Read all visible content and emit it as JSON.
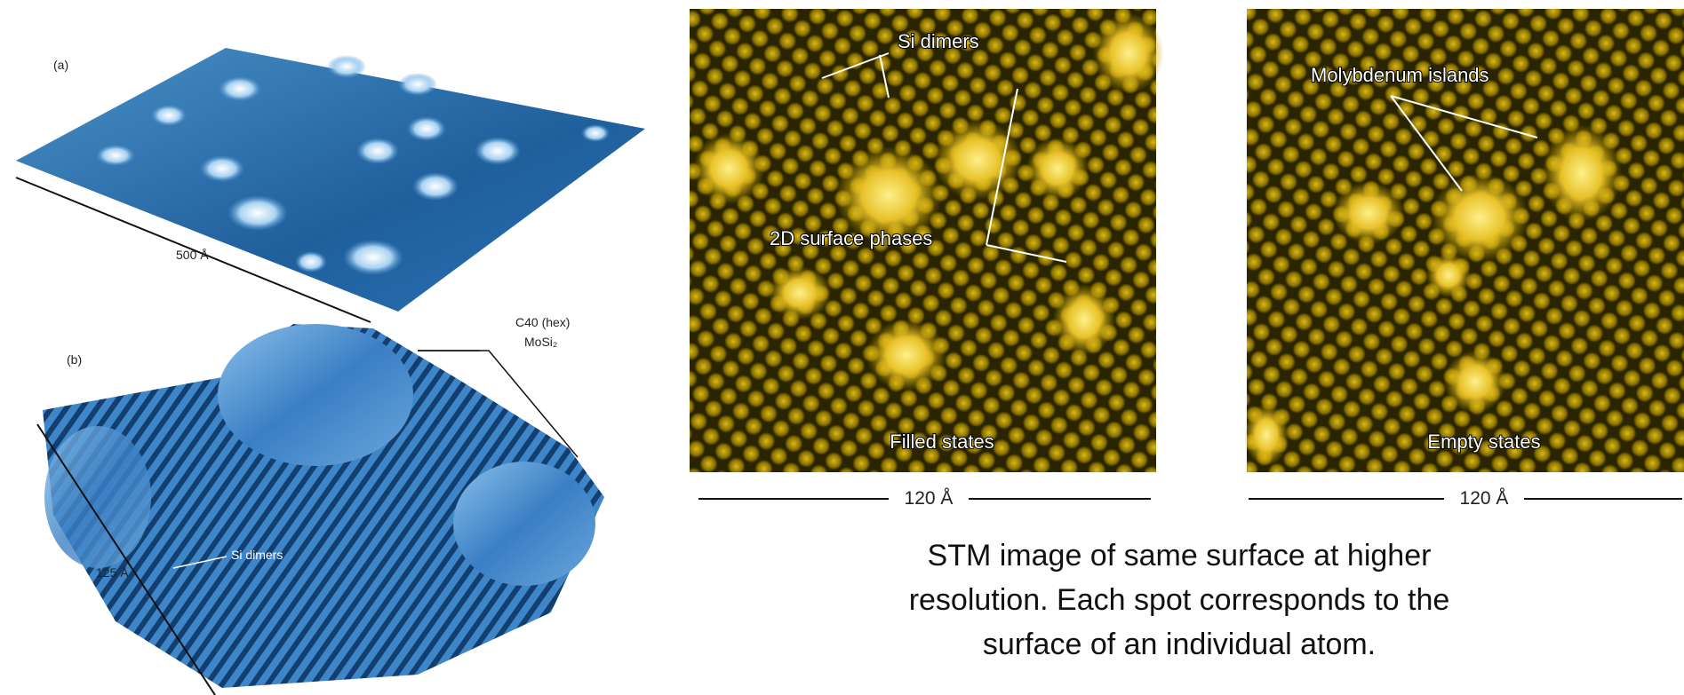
{
  "left": {
    "a": {
      "label": "(a)",
      "scale": "500 Å"
    },
    "b": {
      "label": "(b)",
      "phase": "C40 (hex)",
      "compound": "MoSi₂",
      "scale": "125 Å",
      "feature": "Si dimers"
    }
  },
  "middle": {
    "labels": [
      "Si dimers",
      "2D surface phases"
    ],
    "state": "Filled states",
    "scale": "120 Å"
  },
  "right": {
    "labels": [
      "Molybdenum islands"
    ],
    "state": "Empty states",
    "scale": "120 Å"
  },
  "caption": [
    "STM image of same surface at higher",
    "resolution.  Each spot corresponds to the",
    "surface of an individual atom."
  ]
}
